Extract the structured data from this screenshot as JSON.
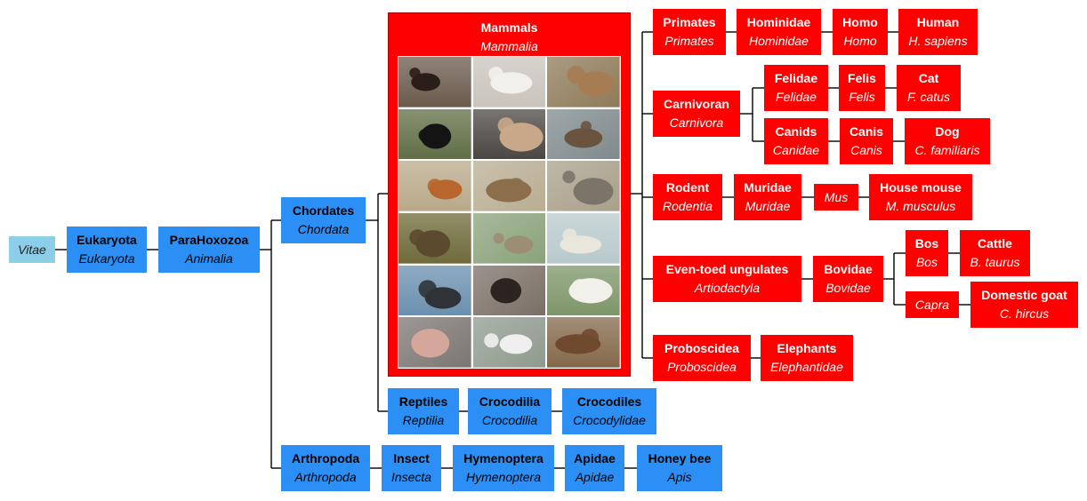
{
  "colors": {
    "domain": "#8ccde8",
    "animal_lineage": "#2b8ff5",
    "mammal_lineage": "#ff0000",
    "line": "#000000"
  },
  "nodes": {
    "vitae": {
      "sci": "Vitae"
    },
    "eukaryota": {
      "common": "Eukaryota",
      "sci": "Eukaryota"
    },
    "parahoxozoa": {
      "common": "ParaHoxozoa",
      "sci": "Animalia"
    },
    "chordates": {
      "common": "Chordates",
      "sci": "Chordata"
    },
    "mammals": {
      "common": "Mammals",
      "sci": "Mammalia"
    },
    "primates": {
      "common": "Primates",
      "sci": "Primates"
    },
    "hominidae": {
      "common": "Hominidae",
      "sci": "Hominidae"
    },
    "homo": {
      "common": "Homo",
      "sci": "Homo"
    },
    "human": {
      "common": "Human",
      "sci": "H. sapiens"
    },
    "carnivoran": {
      "common": "Carnivoran",
      "sci": "Carnivora"
    },
    "felidae": {
      "common": "Felidae",
      "sci": "Felidae"
    },
    "felis": {
      "common": "Felis",
      "sci": "Felis"
    },
    "cat": {
      "common": "Cat",
      "sci": "F. catus"
    },
    "canids": {
      "common": "Canids",
      "sci": "Canidae"
    },
    "canis": {
      "common": "Canis",
      "sci": "Canis"
    },
    "dog": {
      "common": "Dog",
      "sci": "C. familiaris"
    },
    "rodent": {
      "common": "Rodent",
      "sci": "Rodentia"
    },
    "muridae": {
      "common": "Muridae",
      "sci": "Muridae"
    },
    "mus": {
      "sci": "Mus"
    },
    "house_mouse": {
      "common": "House mouse",
      "sci": "M. musculus"
    },
    "even_toed": {
      "common": "Even-toed ungulates",
      "sci": "Artiodactyla"
    },
    "bovidae": {
      "common": "Bovidae",
      "sci": "Bovidae"
    },
    "bos": {
      "common": "Bos",
      "sci": "Bos"
    },
    "cattle": {
      "common": "Cattle",
      "sci": "B. taurus"
    },
    "capra": {
      "sci": "Capra"
    },
    "goat": {
      "common": "Domestic goat",
      "sci": "C. hircus"
    },
    "proboscidea": {
      "common": "Proboscidea",
      "sci": "Proboscidea"
    },
    "elephants": {
      "common": "Elephants",
      "sci": "Elephantidae"
    },
    "reptiles": {
      "common": "Reptiles",
      "sci": "Reptilia"
    },
    "crocodilia": {
      "common": "Crocodilia",
      "sci": "Crocodilia"
    },
    "crocodiles": {
      "common": "Crocodiles",
      "sci": "Crocodylidae"
    },
    "arthropoda": {
      "common": "Arthropoda",
      "sci": "Arthropoda"
    },
    "insect": {
      "common": "Insect",
      "sci": "Insecta"
    },
    "hymenoptera": {
      "common": "Hymenoptera",
      "sci": "Hymenoptera"
    },
    "apidae": {
      "common": "Apidae",
      "sci": "Apidae"
    },
    "honey_bee": {
      "common": "Honey bee",
      "sci": "Apis"
    }
  },
  "photos": [
    {
      "subject": "bat-photo",
      "bg": "#6b5a4c",
      "fg": "#2a1e1a"
    },
    {
      "subject": "opossum-photo",
      "bg": "#c9c4bc",
      "fg": "#f2f0ec"
    },
    {
      "subject": "kangaroo-photo",
      "bg": "#8f7a58",
      "fg": "#a67c52"
    },
    {
      "subject": "tasmanian-devil-photo",
      "bg": "#5f6e45",
      "fg": "#141414"
    },
    {
      "subject": "people-photo",
      "bg": "#4a4642",
      "fg": "#c9a889"
    },
    {
      "subject": "sea-lion-photo",
      "bg": "#7f8a8c",
      "fg": "#6a5440"
    },
    {
      "subject": "squirrel-photo",
      "bg": "#b9a98a",
      "fg": "#b8662e"
    },
    {
      "subject": "pangolin-photo",
      "bg": "#b9ad92",
      "fg": "#8c6e4c"
    },
    {
      "subject": "elephant-photo",
      "bg": "#a9a08a",
      "fg": "#7b7468"
    },
    {
      "subject": "platypus-photo",
      "bg": "#6e6a3a",
      "fg": "#5b4a2e"
    },
    {
      "subject": "sloth-photo",
      "bg": "#8aa27a",
      "fg": "#9c8e74"
    },
    {
      "subject": "reindeer-photo",
      "bg": "#b8c9cc",
      "fg": "#e9e6dc"
    },
    {
      "subject": "whale-photo",
      "bg": "#6a8fae",
      "fg": "#2f3338"
    },
    {
      "subject": "mole-photo",
      "bg": "#7a6f66",
      "fg": "#2c2420"
    },
    {
      "subject": "panda-photo",
      "bg": "#7d9568",
      "fg": "#f1f0ea"
    },
    {
      "subject": "naked-mole-rat-photo",
      "bg": "#7c7672",
      "fg": "#d4a79a"
    },
    {
      "subject": "zebra-photo",
      "bg": "#8f9a8e",
      "fg": "#efefef"
    },
    {
      "subject": "solenodon-photo",
      "bg": "#84684a",
      "fg": "#6f4a2e"
    }
  ]
}
